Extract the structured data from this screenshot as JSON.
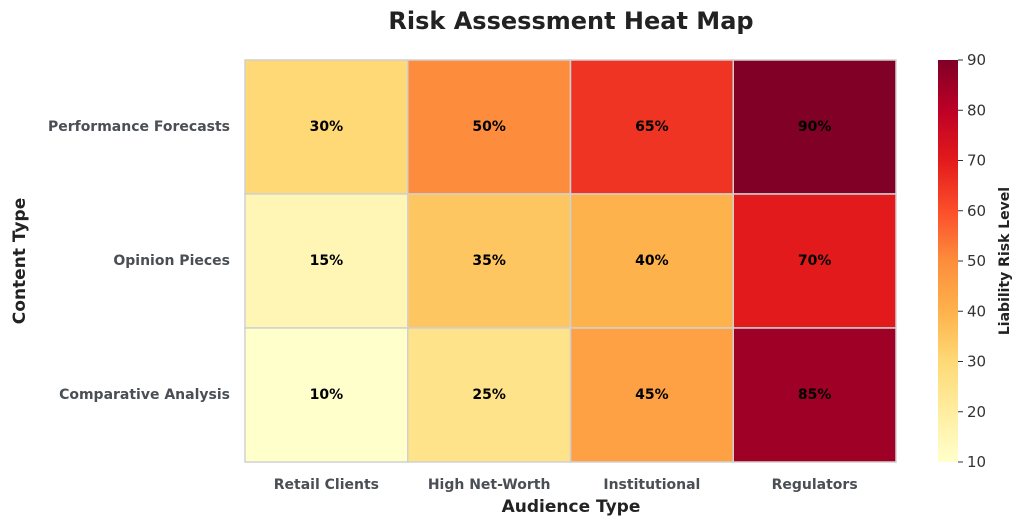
{
  "chart_data": {
    "type": "heatmap",
    "title": "Risk Assessment Heat Map",
    "xlabel": "Audience Type",
    "ylabel": "Content Type",
    "x_categories": [
      "Retail Clients",
      "High Net-Worth",
      "Institutional",
      "Regulators"
    ],
    "y_categories": [
      "Performance Forecasts",
      "Opinion Pieces",
      "Comparative Analysis"
    ],
    "values": [
      [
        30,
        50,
        65,
        90
      ],
      [
        15,
        35,
        40,
        70
      ],
      [
        10,
        25,
        45,
        85
      ]
    ],
    "value_suffix": "%",
    "colorscale": "YlOrRd",
    "colorbar": {
      "label": "Liability Risk Level",
      "range": [
        10,
        90
      ],
      "ticks": [
        10,
        20,
        30,
        40,
        50,
        60,
        70,
        80,
        90
      ]
    }
  }
}
